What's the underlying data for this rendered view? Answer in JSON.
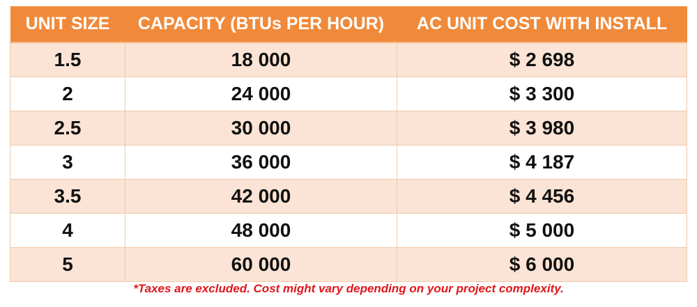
{
  "table": {
    "headers": [
      "UNIT SIZE",
      "CAPACITY (BTUs PER HOUR)",
      "AC UNIT COST WITH INSTALL"
    ],
    "rows": [
      [
        "1.5",
        "18 000",
        "$ 2 698"
      ],
      [
        "2",
        "24 000",
        "$ 3 300"
      ],
      [
        "2.5",
        "30 000",
        "$ 3 980"
      ],
      [
        "3",
        "36 000",
        "$ 4 187"
      ],
      [
        "3.5",
        "42 000",
        "$ 4 456"
      ],
      [
        "4",
        "48 000",
        "$ 5 000"
      ],
      [
        "5",
        "60 000",
        "$ 6 000"
      ]
    ]
  },
  "footnote": "*Taxes are excluded. Cost might vary depending on your project complexity.",
  "colors": {
    "header_bg": "#f08a3a",
    "header_text": "#ffffff",
    "row_alt_bg": "#fbe4d5",
    "footnote_text": "#e0161b"
  }
}
